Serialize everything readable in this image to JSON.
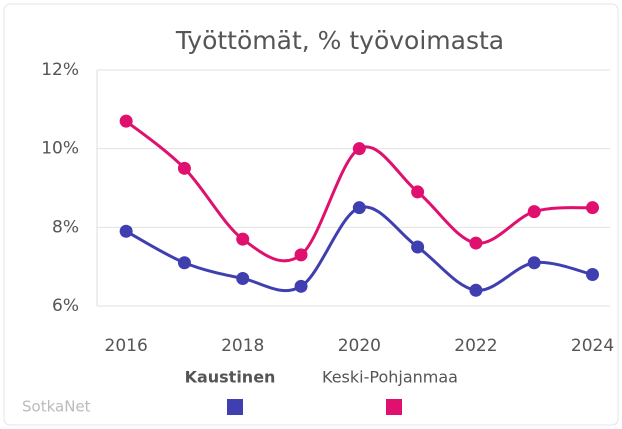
{
  "chart_data": {
    "type": "line",
    "title": "Työttömät, % työvoimasta",
    "source": "SotkaNet",
    "x": [
      2016,
      2017,
      2018,
      2019,
      2020,
      2021,
      2022,
      2023,
      2024
    ],
    "series": [
      {
        "name": "Kaustinen",
        "color": "#3f3fb0",
        "values": [
          7.9,
          7.1,
          6.7,
          6.5,
          8.5,
          7.5,
          6.4,
          7.1,
          6.8
        ]
      },
      {
        "name": "Keski-Pohjanmaa",
        "color": "#e0106e",
        "values": [
          10.7,
          9.5,
          7.7,
          7.3,
          10.0,
          8.9,
          7.6,
          8.4,
          8.5
        ]
      }
    ],
    "xlim": [
      2015.5,
      2024.3
    ],
    "xticks": [
      2016,
      2018,
      2020,
      2022,
      2024
    ],
    "ylim": [
      6,
      12
    ],
    "yticks": [
      {
        "value": 6,
        "label": "6%"
      },
      {
        "value": 8,
        "label": "8%"
      },
      {
        "value": 10,
        "label": "10%"
      },
      {
        "value": 12,
        "label": "12%"
      }
    ],
    "grid": true
  }
}
